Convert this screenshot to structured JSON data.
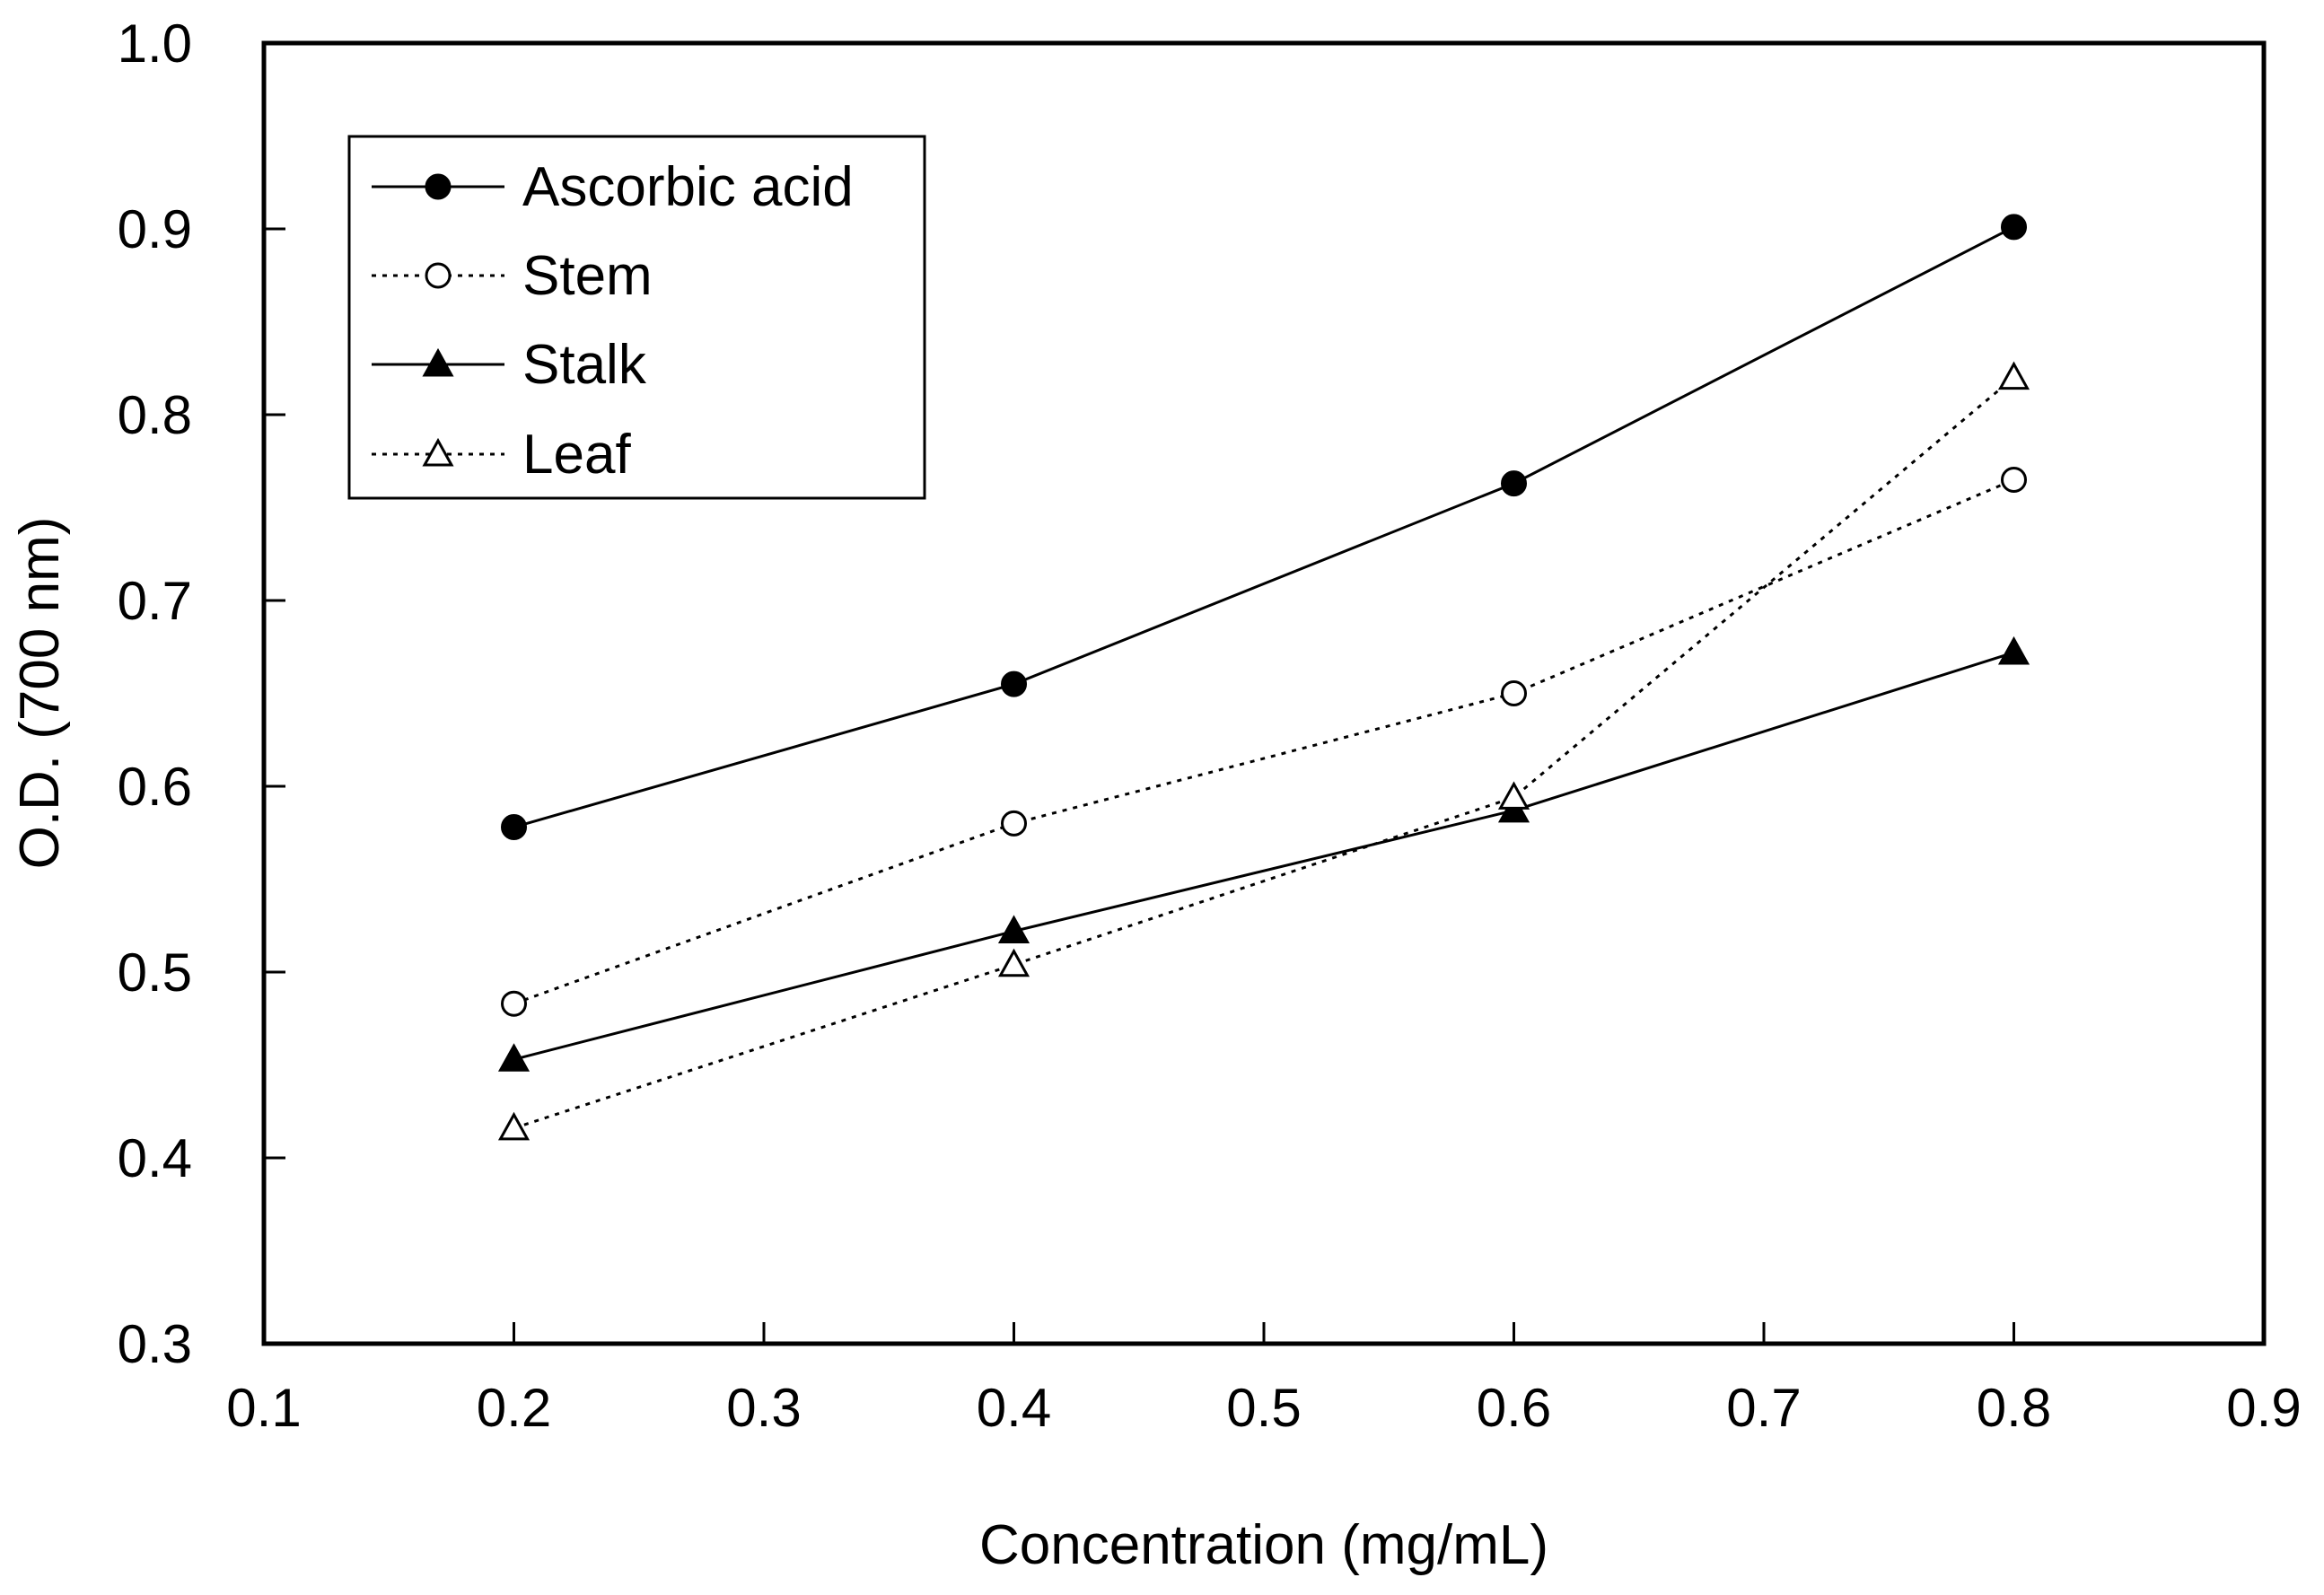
{
  "chart_data": {
    "type": "line",
    "title": "",
    "xlabel": "Concentration (mg/mL)",
    "ylabel": "O.D. (700 nm)",
    "xlim": [
      0.1,
      0.9
    ],
    "ylim": [
      0.3,
      1.0
    ],
    "xticks": [
      "0.1",
      "0.2",
      "0.3",
      "0.4",
      "0.5",
      "0.6",
      "0.7",
      "0.8",
      "0.9"
    ],
    "yticks": [
      "0.3",
      "0.4",
      "0.5",
      "0.6",
      "0.7",
      "0.8",
      "0.9",
      "1.0"
    ],
    "grid": false,
    "legend_position": "top-left",
    "x": [
      0.2,
      0.4,
      0.6,
      0.8
    ],
    "series": [
      {
        "name": "Ascorbic acid",
        "values": [
          0.578,
          0.655,
          0.763,
          0.901
        ],
        "marker": "filled-circle",
        "line": "solid"
      },
      {
        "name": "Stem",
        "values": [
          0.483,
          0.58,
          0.65,
          0.765
        ],
        "marker": "open-circle",
        "line": "dotted"
      },
      {
        "name": "Stalk",
        "values": [
          0.453,
          0.522,
          0.587,
          0.672
        ],
        "marker": "filled-triangle",
        "line": "solid"
      },
      {
        "name": "Leaf",
        "values": [
          0.416,
          0.504,
          0.594,
          0.82
        ],
        "marker": "open-triangle",
        "line": "dotted"
      }
    ]
  }
}
